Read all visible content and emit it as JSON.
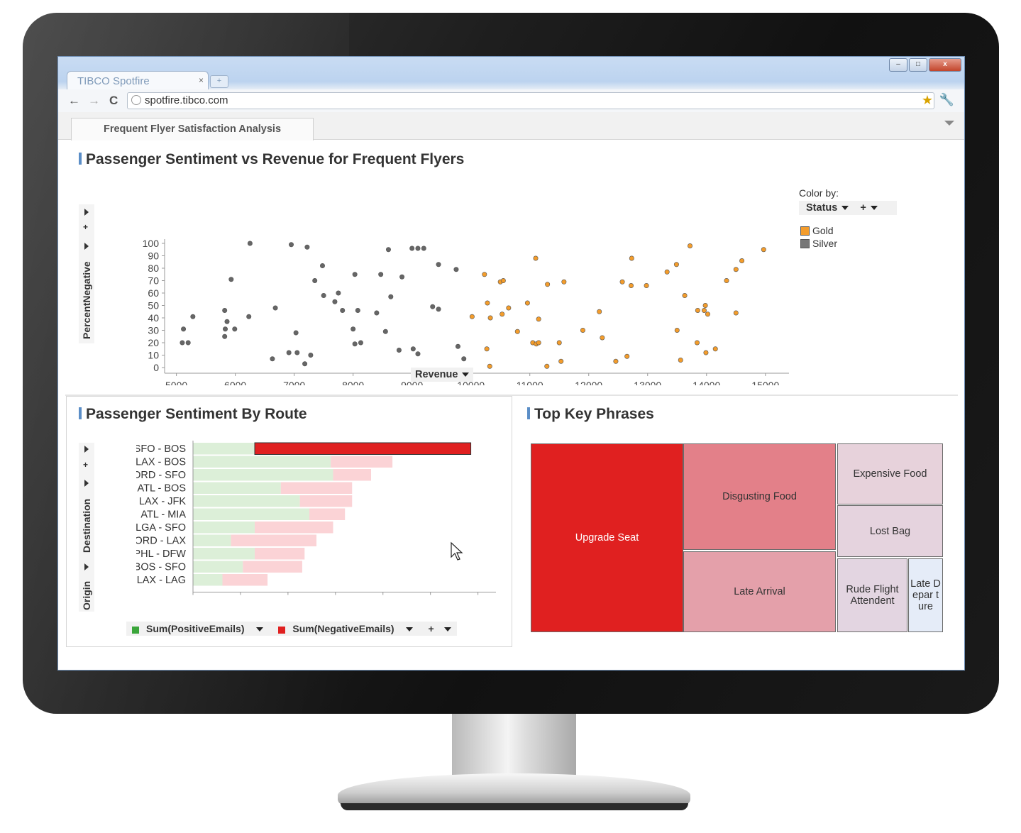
{
  "browser": {
    "tab_title": "TIBCO Spotfire",
    "tab_close": "×",
    "new_tab": "+",
    "url": "spotfire.tibco.com",
    "window_buttons": {
      "minimize": "–",
      "maximize": "□",
      "close": "x"
    },
    "nav": {
      "back": "←",
      "forward": "→",
      "reload": "C"
    }
  },
  "app": {
    "page_tab": "Frequent Flyer Satisfaction Analysis"
  },
  "scatter": {
    "title": "Passenger Sentiment vs Revenue for Frequent Flyers",
    "y_axis_label": "PercentNegative",
    "x_axis_label": "Revenue",
    "color_by_label": "Color by:",
    "color_by_value": "Status",
    "plus": "+",
    "legend": [
      {
        "name": "Gold",
        "color": "#f39c2b"
      },
      {
        "name": "Silver",
        "color": "#777777"
      }
    ]
  },
  "route_chart": {
    "title": "Passenger Sentiment By Route",
    "y_axis_labels": [
      "Destination",
      "Origin"
    ],
    "plus": "+",
    "legend": [
      {
        "name": "Sum(PositiveEmails)",
        "color": "#3aa53a"
      },
      {
        "name": "Sum(NegativeEmails)",
        "color": "#e02020"
      }
    ]
  },
  "phrases": {
    "title": "Top Key Phrases",
    "cells": [
      {
        "label": "Upgrade Seat",
        "color": "#e02020"
      },
      {
        "label": "Disgusting Food",
        "color": "#e38089"
      },
      {
        "label": "Expensive Food",
        "color": "#e7d2db"
      },
      {
        "label": "Lost Bag",
        "color": "#e5d3de"
      },
      {
        "label": "Late Arrival",
        "color": "#e4a0aa"
      },
      {
        "label": "Rude Flight Attendent",
        "color": "#e3d5e1"
      },
      {
        "label": "Late Depar ture",
        "color": "#e5ecf8"
      }
    ]
  },
  "chart_data": [
    {
      "type": "scatter",
      "title": "Passenger Sentiment vs Revenue for Frequent Flyers",
      "xlabel": "Revenue",
      "ylabel": "PercentNegative",
      "xlim": [
        4800,
        15400
      ],
      "ylim": [
        0,
        100
      ],
      "xticks": [
        5000,
        6000,
        7000,
        8000,
        9000,
        10000,
        11000,
        12000,
        13000,
        14000,
        15000
      ],
      "yticks": [
        0,
        10,
        20,
        30,
        40,
        50,
        60,
        70,
        80,
        90,
        100
      ],
      "legend_position": "right",
      "series": [
        {
          "name": "Silver",
          "color": "#666666",
          "points": [
            [
              6250,
              100
            ],
            [
              6950,
              99
            ],
            [
              7220,
              97
            ],
            [
              8600,
              95
            ],
            [
              9000,
              96
            ],
            [
              9100,
              96
            ],
            [
              9200,
              96
            ],
            [
              7480,
              82
            ],
            [
              9450,
              83
            ],
            [
              9750,
              79
            ],
            [
              8030,
              75
            ],
            [
              8470,
              75
            ],
            [
              8830,
              73
            ],
            [
              7350,
              70
            ],
            [
              5930,
              71
            ],
            [
              7500,
              58
            ],
            [
              7750,
              60
            ],
            [
              8640,
              57
            ],
            [
              7690,
              53
            ],
            [
              9350,
              49
            ],
            [
              9450,
              47
            ],
            [
              6680,
              48
            ],
            [
              5820,
              46
            ],
            [
              7820,
              46
            ],
            [
              8080,
              46
            ],
            [
              8400,
              44
            ],
            [
              5280,
              41
            ],
            [
              6230,
              41
            ],
            [
              5860,
              37
            ],
            [
              5120,
              31
            ],
            [
              5830,
              31
            ],
            [
              5990,
              31
            ],
            [
              8000,
              31
            ],
            [
              8550,
              29
            ],
            [
              7030,
              28
            ],
            [
              5820,
              25
            ],
            [
              5100,
              20
            ],
            [
              5200,
              20
            ],
            [
              8030,
              19
            ],
            [
              8130,
              20
            ],
            [
              9020,
              15
            ],
            [
              9100,
              11
            ],
            [
              9780,
              17
            ],
            [
              8780,
              14
            ],
            [
              6910,
              12
            ],
            [
              7050,
              12
            ],
            [
              7280,
              10
            ],
            [
              6630,
              7
            ],
            [
              9880,
              7
            ],
            [
              7180,
              3
            ]
          ]
        },
        {
          "name": "Gold",
          "color": "#f39c2b",
          "points": [
            [
              11100,
              88
            ],
            [
              12730,
              88
            ],
            [
              13720,
              98
            ],
            [
              14970,
              95
            ],
            [
              14600,
              86
            ],
            [
              14500,
              79
            ],
            [
              10230,
              75
            ],
            [
              13490,
              83
            ],
            [
              13330,
              77
            ],
            [
              10500,
              69
            ],
            [
              10550,
              70
            ],
            [
              11300,
              67
            ],
            [
              11580,
              69
            ],
            [
              12570,
              69
            ],
            [
              12720,
              66
            ],
            [
              12980,
              66
            ],
            [
              14340,
              70
            ],
            [
              13630,
              58
            ],
            [
              10280,
              52
            ],
            [
              10960,
              52
            ],
            [
              13980,
              50
            ],
            [
              10640,
              48
            ],
            [
              13850,
              46
            ],
            [
              13960,
              46
            ],
            [
              10330,
              40
            ],
            [
              10530,
              43
            ],
            [
              10020,
              41
            ],
            [
              14020,
              43
            ],
            [
              12180,
              45
            ],
            [
              14500,
              44
            ],
            [
              11150,
              39
            ],
            [
              10790,
              29
            ],
            [
              11900,
              30
            ],
            [
              13500,
              30
            ],
            [
              12230,
              24
            ],
            [
              11050,
              20
            ],
            [
              11110,
              19
            ],
            [
              11500,
              20
            ],
            [
              11150,
              20
            ],
            [
              13840,
              20
            ],
            [
              10270,
              15
            ],
            [
              14150,
              15
            ],
            [
              13990,
              12
            ],
            [
              12650,
              9
            ],
            [
              12460,
              5
            ],
            [
              11530,
              5
            ],
            [
              13560,
              6
            ],
            [
              10320,
              1
            ],
            [
              11290,
              1
            ]
          ]
        }
      ]
    },
    {
      "type": "bar",
      "orientation": "horizontal",
      "stacked": true,
      "title": "Passenger Sentiment By Route",
      "categories": [
        "SFO - BOS",
        "LAX - BOS",
        "ORD - SFO",
        "ATL - BOS",
        "LAX - JFK",
        "ATL - MIA",
        "LGA - SFO",
        "ORD - LAX",
        "PHL - DFW",
        "BOS - SFO",
        "LAX - LAG"
      ],
      "xlim": [
        0,
        620
      ],
      "xticks": [
        0,
        100,
        200,
        300,
        400,
        500,
        600
      ],
      "legend_position": "bottom",
      "series": [
        {
          "name": "Sum(PositiveEmails)",
          "color": "#dcefd8",
          "values": [
            130,
            290,
            295,
            185,
            225,
            245,
            130,
            80,
            130,
            105,
            62
          ]
        },
        {
          "name": "Sum(NegativeEmails)",
          "color": "#fbd3d6",
          "values": [
            455,
            130,
            80,
            150,
            110,
            75,
            165,
            180,
            105,
            125,
            95
          ]
        }
      ],
      "highlight": {
        "category": "SFO - BOS",
        "series": "Sum(NegativeEmails)",
        "color": "#e02020"
      }
    }
  ]
}
